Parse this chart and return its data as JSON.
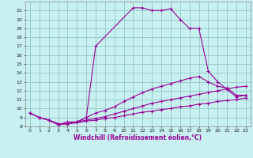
{
  "xlabel": "Windchill (Refroidissement éolien,°C)",
  "bg_color": "#c8f0f0",
  "grid_color": "#99cccc",
  "line_color": "#990099",
  "ylim": [
    8,
    22
  ],
  "xlim": [
    -0.5,
    23.5
  ],
  "yticks": [
    8,
    9,
    10,
    11,
    12,
    13,
    14,
    15,
    16,
    17,
    18,
    19,
    20,
    21
  ],
  "xticks": [
    0,
    1,
    2,
    3,
    4,
    5,
    6,
    7,
    8,
    9,
    10,
    11,
    12,
    13,
    14,
    15,
    16,
    17,
    18,
    19,
    20,
    21,
    22,
    23
  ],
  "curves": [
    {
      "x": [
        0,
        1,
        2,
        3,
        4,
        5,
        6,
        7,
        11,
        12,
        13,
        14,
        15,
        16,
        17,
        18,
        19,
        20,
        22,
        23
      ],
      "y": [
        9.5,
        9.0,
        8.7,
        8.2,
        8.5,
        8.5,
        9.0,
        17.0,
        21.3,
        21.3,
        21.0,
        21.0,
        21.2,
        20.0,
        19.0,
        19.0,
        14.2,
        13.0,
        11.3,
        11.5
      ]
    },
    {
      "x": [
        1,
        2,
        3,
        4,
        5,
        6,
        7,
        8,
        9,
        10,
        11,
        12,
        13,
        14,
        15,
        16,
        17,
        18,
        19,
        20,
        21,
        22,
        23
      ],
      "y": [
        9.0,
        8.7,
        8.2,
        8.3,
        8.5,
        9.0,
        9.5,
        9.8,
        10.2,
        10.8,
        11.3,
        11.8,
        12.2,
        12.5,
        12.8,
        13.1,
        13.4,
        13.6,
        13.0,
        12.5,
        12.3,
        11.5,
        11.5
      ]
    },
    {
      "x": [
        0,
        1,
        2,
        3,
        4,
        5,
        6,
        7,
        8,
        9,
        10,
        11,
        12,
        13,
        14,
        15,
        16,
        17,
        18,
        19,
        20,
        21,
        22,
        23
      ],
      "y": [
        9.5,
        9.0,
        8.7,
        8.3,
        8.3,
        8.5,
        8.7,
        8.9,
        9.1,
        9.4,
        9.7,
        10.0,
        10.3,
        10.6,
        10.8,
        11.0,
        11.2,
        11.4,
        11.6,
        11.8,
        12.0,
        12.2,
        12.4,
        12.5
      ]
    },
    {
      "x": [
        0,
        1,
        2,
        3,
        4,
        5,
        6,
        7,
        8,
        9,
        10,
        11,
        12,
        13,
        14,
        15,
        16,
        17,
        18,
        19,
        20,
        21,
        22,
        23
      ],
      "y": [
        9.5,
        9.0,
        8.7,
        8.3,
        8.3,
        8.4,
        8.6,
        8.7,
        8.9,
        9.0,
        9.2,
        9.4,
        9.6,
        9.7,
        9.9,
        10.0,
        10.2,
        10.3,
        10.5,
        10.6,
        10.8,
        10.9,
        11.0,
        11.2
      ]
    }
  ]
}
